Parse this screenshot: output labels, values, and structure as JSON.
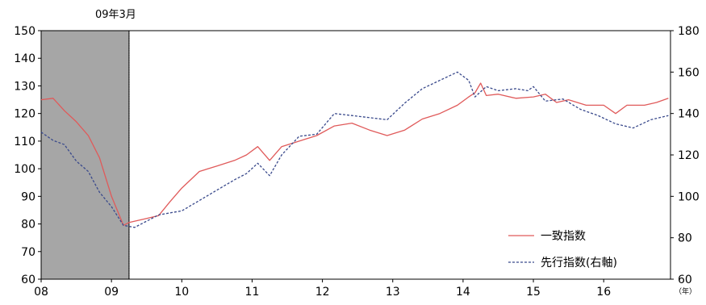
{
  "chart_data": {
    "type": "line",
    "annotation": "09年3月",
    "shaded_recession": {
      "x_start": 2008.0,
      "x_end": 2009.25,
      "color": "#a6a6a6"
    },
    "x_axis": {
      "range": [
        2008.0,
        2016.95
      ],
      "ticks": [
        2008,
        2009,
        2010,
        2011,
        2012,
        2013,
        2014,
        2015,
        2016
      ],
      "tick_labels": [
        "08",
        "09",
        "10",
        "11",
        "12",
        "13",
        "14",
        "15",
        "16"
      ],
      "unit_label": "（年）"
    },
    "y_left": {
      "range": [
        60,
        150
      ],
      "ticks": [
        60,
        70,
        80,
        90,
        100,
        110,
        120,
        130,
        140,
        150
      ],
      "tick_labels": [
        "60",
        "70",
        "80",
        "90",
        "100",
        "110",
        "120",
        "130",
        "140",
        "150"
      ]
    },
    "y_right": {
      "range": [
        60,
        180
      ],
      "ticks": [
        60,
        80,
        100,
        120,
        140,
        160,
        180
      ],
      "tick_labels": [
        "60",
        "80",
        "100",
        "120",
        "140",
        "160",
        "180"
      ]
    },
    "legend": {
      "placement": "bottom-right"
    },
    "series": [
      {
        "name": "一致指数",
        "axis": "left",
        "color": "#e05a5a",
        "style": "solid",
        "points": [
          [
            2008.0,
            125
          ],
          [
            2008.17,
            125.5
          ],
          [
            2008.33,
            121
          ],
          [
            2008.5,
            117
          ],
          [
            2008.67,
            112
          ],
          [
            2008.83,
            104
          ],
          [
            2009.0,
            90
          ],
          [
            2009.17,
            79.5
          ],
          [
            2009.25,
            80.5
          ],
          [
            2009.5,
            82
          ],
          [
            2009.67,
            83
          ],
          [
            2009.83,
            88
          ],
          [
            2010.0,
            93
          ],
          [
            2010.25,
            99
          ],
          [
            2010.5,
            101
          ],
          [
            2010.75,
            103
          ],
          [
            2010.92,
            105
          ],
          [
            2011.08,
            108
          ],
          [
            2011.25,
            103
          ],
          [
            2011.42,
            108
          ],
          [
            2011.67,
            110
          ],
          [
            2011.92,
            112
          ],
          [
            2012.17,
            115.5
          ],
          [
            2012.42,
            116.5
          ],
          [
            2012.67,
            114
          ],
          [
            2012.92,
            112
          ],
          [
            2013.17,
            114
          ],
          [
            2013.42,
            118
          ],
          [
            2013.67,
            120
          ],
          [
            2013.92,
            123
          ],
          [
            2014.08,
            126
          ],
          [
            2014.17,
            127.5
          ],
          [
            2014.25,
            131
          ],
          [
            2014.33,
            126.5
          ],
          [
            2014.5,
            127
          ],
          [
            2014.75,
            125.5
          ],
          [
            2015.0,
            126
          ],
          [
            2015.17,
            127
          ],
          [
            2015.33,
            124
          ],
          [
            2015.5,
            125
          ],
          [
            2015.75,
            123
          ],
          [
            2016.0,
            123
          ],
          [
            2016.17,
            120
          ],
          [
            2016.33,
            123
          ],
          [
            2016.58,
            123
          ],
          [
            2016.75,
            124
          ],
          [
            2016.92,
            125.5
          ]
        ]
      },
      {
        "name": "先行指数(右軸)",
        "axis": "right",
        "color": "#3a4a8c",
        "style": "dashed",
        "points": [
          [
            2008.0,
            131
          ],
          [
            2008.17,
            127
          ],
          [
            2008.33,
            125
          ],
          [
            2008.5,
            117
          ],
          [
            2008.67,
            112
          ],
          [
            2008.83,
            102
          ],
          [
            2009.0,
            95
          ],
          [
            2009.17,
            86
          ],
          [
            2009.33,
            85
          ],
          [
            2009.5,
            88
          ],
          [
            2009.67,
            91
          ],
          [
            2009.83,
            92
          ],
          [
            2010.0,
            93
          ],
          [
            2010.25,
            98
          ],
          [
            2010.5,
            103
          ],
          [
            2010.75,
            108
          ],
          [
            2010.92,
            111
          ],
          [
            2011.08,
            116
          ],
          [
            2011.25,
            110
          ],
          [
            2011.42,
            120
          ],
          [
            2011.67,
            129
          ],
          [
            2011.92,
            130
          ],
          [
            2012.17,
            140
          ],
          [
            2012.42,
            139
          ],
          [
            2012.67,
            138
          ],
          [
            2012.92,
            137
          ],
          [
            2013.17,
            145
          ],
          [
            2013.42,
            152
          ],
          [
            2013.67,
            156
          ],
          [
            2013.92,
            160
          ],
          [
            2014.08,
            156
          ],
          [
            2014.17,
            148
          ],
          [
            2014.33,
            153
          ],
          [
            2014.5,
            151
          ],
          [
            2014.75,
            152
          ],
          [
            2014.92,
            151
          ],
          [
            2015.0,
            153
          ],
          [
            2015.17,
            146
          ],
          [
            2015.42,
            147
          ],
          [
            2015.67,
            142
          ],
          [
            2015.92,
            139
          ],
          [
            2016.17,
            135
          ],
          [
            2016.42,
            133
          ],
          [
            2016.67,
            137
          ],
          [
            2016.92,
            139
          ]
        ]
      }
    ]
  }
}
